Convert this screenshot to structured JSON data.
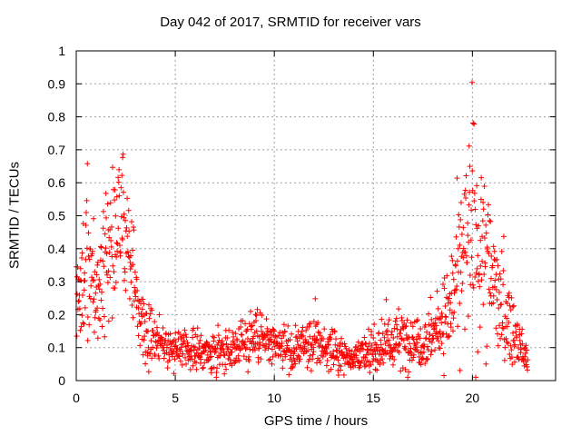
{
  "chart_data": {
    "type": "scatter",
    "title": "Day 042 of 2017, SRMTID for receiver vars",
    "xlabel": "GPS time / hours",
    "ylabel": "SRMTID / TECUs",
    "xlim": [
      0,
      24.2
    ],
    "ylim": [
      0,
      1
    ],
    "xticks": [
      "0",
      "5",
      "10",
      "15",
      "20"
    ],
    "yticks": [
      "0",
      "0.1",
      "0.2",
      "0.3",
      "0.4",
      "0.5",
      "0.6",
      "0.7",
      "0.8",
      "0.9",
      "1"
    ],
    "grid": true,
    "marker": "+",
    "color": "#ff0000",
    "series": [
      {
        "name": "SRMTID",
        "x_start": 0,
        "x_end": 22.8,
        "x_step": 0.017,
        "envelope": [
          [
            0.0,
            0.26,
            0.07
          ],
          [
            0.3,
            0.28,
            0.08
          ],
          [
            0.5,
            0.38,
            0.11
          ],
          [
            0.8,
            0.33,
            0.1
          ],
          [
            1.0,
            0.22,
            0.06
          ],
          [
            1.4,
            0.3,
            0.1
          ],
          [
            1.8,
            0.42,
            0.13
          ],
          [
            2.1,
            0.48,
            0.1
          ],
          [
            2.5,
            0.5,
            0.09
          ],
          [
            2.8,
            0.36,
            0.07
          ],
          [
            3.2,
            0.2,
            0.06
          ],
          [
            3.7,
            0.14,
            0.05
          ],
          [
            4.2,
            0.12,
            0.04
          ],
          [
            5.0,
            0.1,
            0.03
          ],
          [
            6.0,
            0.09,
            0.03
          ],
          [
            7.0,
            0.09,
            0.03
          ],
          [
            8.0,
            0.1,
            0.03
          ],
          [
            9.0,
            0.14,
            0.05
          ],
          [
            9.5,
            0.12,
            0.04
          ],
          [
            10.0,
            0.1,
            0.03
          ],
          [
            11.0,
            0.09,
            0.03
          ],
          [
            12.0,
            0.11,
            0.04
          ],
          [
            13.0,
            0.09,
            0.03
          ],
          [
            14.0,
            0.07,
            0.02
          ],
          [
            14.8,
            0.08,
            0.03
          ],
          [
            15.5,
            0.11,
            0.04
          ],
          [
            16.5,
            0.12,
            0.05
          ],
          [
            17.5,
            0.12,
            0.04
          ],
          [
            18.3,
            0.16,
            0.05
          ],
          [
            18.8,
            0.21,
            0.07
          ],
          [
            19.2,
            0.3,
            0.1
          ],
          [
            19.6,
            0.38,
            0.14
          ],
          [
            20.0,
            0.45,
            0.18
          ],
          [
            20.4,
            0.42,
            0.15
          ],
          [
            20.8,
            0.35,
            0.13
          ],
          [
            21.2,
            0.28,
            0.1
          ],
          [
            21.6,
            0.2,
            0.07
          ],
          [
            22.0,
            0.16,
            0.05
          ],
          [
            22.5,
            0.09,
            0.03
          ],
          [
            22.8,
            0.06,
            0.02
          ]
        ]
      }
    ]
  }
}
